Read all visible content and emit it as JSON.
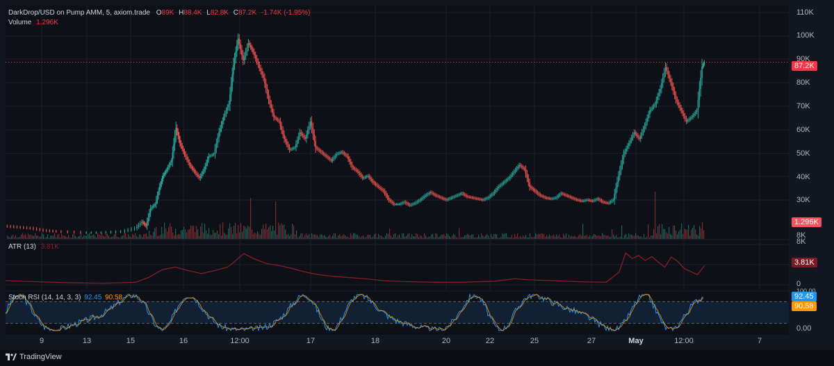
{
  "legend": {
    "title": "DarkDrop/USD on Pump AMM, 5, axiom.trade",
    "o_key": "O",
    "o_val": "89K",
    "h_key": "H",
    "h_val": "88.4K",
    "l_key": "L",
    "l_val": "82.8K",
    "c_key": "C",
    "c_val": "87.2K",
    "change": "-1.74K (-1.95%)",
    "volume_label": "Volume",
    "volume_val": "1.296K"
  },
  "atr_legend": {
    "label": "ATR (13)",
    "value": "3.81K"
  },
  "stoch_legend": {
    "label": "Stoch RSI (14, 14, 3, 3)",
    "k": "92.45",
    "d": "90.58"
  },
  "price_axis": {
    "ticks": [
      "110K",
      "100K",
      "90K",
      "80K",
      "70K",
      "60K",
      "50K",
      "40K",
      "30K",
      "8K"
    ]
  },
  "atr_axis": {
    "ticks": [
      "8K",
      "0"
    ]
  },
  "stoch_axis": {
    "ticks": [
      "100.00",
      "0.00"
    ]
  },
  "badges": {
    "price": "87.2K",
    "volume": "1.296K",
    "atr": "3.81K",
    "k": "92.45",
    "d": "90.58"
  },
  "time_axis": {
    "labels": [
      {
        "text": "9",
        "bold": false
      },
      {
        "text": "13",
        "bold": false
      },
      {
        "text": "15",
        "bold": false
      },
      {
        "text": "16",
        "bold": false
      },
      {
        "text": "12:00",
        "bold": false
      },
      {
        "text": "17",
        "bold": false
      },
      {
        "text": "18",
        "bold": false
      },
      {
        "text": "20",
        "bold": false
      },
      {
        "text": "22",
        "bold": false
      },
      {
        "text": "25",
        "bold": false
      },
      {
        "text": "27",
        "bold": false
      },
      {
        "text": "May",
        "bold": true
      },
      {
        "text": "12:00",
        "bold": false
      },
      {
        "text": "7",
        "bold": false
      }
    ]
  },
  "footer": {
    "brand": "TradingView"
  },
  "colors": {
    "up": "#26a69a",
    "down": "#ef5350",
    "atr": "#8e1e26",
    "stoch_k": "#2196f3",
    "stoch_d": "#ff9800",
    "price_line": "#f23645"
  },
  "chart_data": [
    {
      "type": "line",
      "title": "DarkDrop/USD on Pump AMM, 5, axiom.trade",
      "ylim": [
        8000,
        110000
      ],
      "current_price": 87200,
      "x": [
        "9",
        "13",
        "15",
        "16",
        "12:00",
        "17",
        "18",
        "20",
        "22",
        "25",
        "27",
        "May",
        "12:00",
        "7"
      ],
      "series": [
        {
          "name": "",
          "points": [
            [
              0,
              12000
            ],
            [
              2,
              11500
            ],
            [
              4,
              11000
            ],
            [
              6,
              10000
            ],
            [
              8,
              9500
            ],
            [
              12,
              9000
            ],
            [
              15,
              9000
            ],
            [
              18,
              9500
            ],
            [
              20,
              11000
            ],
            [
              21,
              14000
            ],
            [
              21.6,
              12000
            ],
            [
              22.3,
              20000
            ],
            [
              23,
              22000
            ],
            [
              23.7,
              30000
            ],
            [
              24.2,
              35000
            ],
            [
              24.8,
              38000
            ],
            [
              25.5,
              42000
            ],
            [
              26.2,
              57000
            ],
            [
              26.8,
              50000
            ],
            [
              27.5,
              45000
            ],
            [
              28.3,
              40000
            ],
            [
              29,
              37000
            ],
            [
              29.8,
              34000
            ],
            [
              30.5,
              38000
            ],
            [
              31.2,
              44000
            ],
            [
              32,
              45000
            ],
            [
              32.8,
              55000
            ],
            [
              33.5,
              62000
            ],
            [
              34.3,
              68000
            ],
            [
              35,
              86000
            ],
            [
              35.7,
              98000
            ],
            [
              36.5,
              88000
            ],
            [
              37.3,
              96000
            ],
            [
              38,
              92000
            ],
            [
              38.8,
              86000
            ],
            [
              39.6,
              80000
            ],
            [
              40.4,
              70000
            ],
            [
              41.2,
              62000
            ],
            [
              42,
              60000
            ],
            [
              42.8,
              52000
            ],
            [
              43.6,
              47000
            ],
            [
              44.4,
              48000
            ],
            [
              45.2,
              55000
            ],
            [
              46,
              52000
            ],
            [
              46.8,
              60000
            ],
            [
              47.6,
              48000
            ],
            [
              48.4,
              46000
            ],
            [
              49.2,
              44000
            ],
            [
              50,
              42000
            ],
            [
              50.8,
              45000
            ],
            [
              51.6,
              46000
            ],
            [
              52.4,
              44000
            ],
            [
              53.2,
              39000
            ],
            [
              54,
              37000
            ],
            [
              54.8,
              34000
            ],
            [
              55.6,
              35000
            ],
            [
              56.4,
              32000
            ],
            [
              57.2,
              30000
            ],
            [
              58,
              28000
            ],
            [
              58.8,
              24000
            ],
            [
              59.6,
              22000
            ],
            [
              60.4,
              22000
            ],
            [
              61.2,
              23000
            ],
            [
              62,
              21500
            ],
            [
              62.8,
              22500
            ],
            [
              63.6,
              24000
            ],
            [
              64.4,
              26000
            ],
            [
              65.2,
              27500
            ],
            [
              66,
              26000
            ],
            [
              66.8,
              25000
            ],
            [
              67.6,
              24000
            ],
            [
              68.4,
              25000
            ],
            [
              69.2,
              26000
            ],
            [
              70,
              27000
            ],
            [
              70.8,
              25500
            ],
            [
              71.6,
              25000
            ],
            [
              72.4,
              24500
            ],
            [
              73.2,
              24000
            ],
            [
              74,
              25000
            ],
            [
              74.8,
              27000
            ],
            [
              75.6,
              30000
            ],
            [
              76.4,
              32000
            ],
            [
              77.2,
              34000
            ],
            [
              78,
              37000
            ],
            [
              78.8,
              40000
            ],
            [
              79.6,
              38000
            ],
            [
              80.4,
              30000
            ],
            [
              81.2,
              28000
            ],
            [
              82,
              26000
            ],
            [
              82.8,
              25000
            ],
            [
              83.6,
              24500
            ],
            [
              84.4,
              25000
            ],
            [
              85.2,
              27000
            ],
            [
              86,
              26000
            ],
            [
              86.8,
              25000
            ],
            [
              87.6,
              24000
            ],
            [
              88.4,
              23500
            ],
            [
              89.2,
              24000
            ],
            [
              90,
              23500
            ],
            [
              90.8,
              24500
            ],
            [
              91.6,
              23000
            ],
            [
              92.4,
              22500
            ],
            [
              93.2,
              24000
            ],
            [
              94,
              35000
            ],
            [
              94.8,
              45000
            ],
            [
              95.6,
              50000
            ],
            [
              96.4,
              55000
            ],
            [
              97.2,
              52000
            ],
            [
              98,
              58000
            ],
            [
              98.8,
              65000
            ],
            [
              99.6,
              68000
            ],
            [
              100.4,
              75000
            ],
            [
              101.2,
              85000
            ],
            [
              102,
              78000
            ],
            [
              102.8,
              70000
            ],
            [
              103.6,
              65000
            ],
            [
              104.4,
              60000
            ],
            [
              105.2,
              62000
            ],
            [
              106,
              65000
            ],
            [
              106.8,
              85000
            ],
            [
              107.1,
              87200
            ]
          ]
        },
        {
          "name": "Volume",
          "values_note": ""
        }
      ]
    },
    {
      "type": "line",
      "title": "ATR (13)",
      "ylim": [
        0,
        8000
      ],
      "series": [
        {
          "name": "ATR (13)",
          "points": [
            [
              0,
              800
            ],
            [
              5,
              600
            ],
            [
              10,
              400
            ],
            [
              15,
              300
            ],
            [
              20,
              500
            ],
            [
              22,
              1500
            ],
            [
              24,
              3000
            ],
            [
              26,
              3500
            ],
            [
              28,
              2800
            ],
            [
              30,
              2200
            ],
            [
              32,
              2800
            ],
            [
              34,
              3500
            ],
            [
              35,
              4500
            ],
            [
              36.5,
              6200
            ],
            [
              38,
              5200
            ],
            [
              40,
              4200
            ],
            [
              42,
              3800
            ],
            [
              44,
              3200
            ],
            [
              46,
              2500
            ],
            [
              48,
              2000
            ],
            [
              50,
              1700
            ],
            [
              52,
              1500
            ],
            [
              55,
              1200
            ],
            [
              58,
              800
            ],
            [
              62,
              600
            ],
            [
              66,
              500
            ],
            [
              70,
              500
            ],
            [
              75,
              700
            ],
            [
              78,
              1200
            ],
            [
              80,
              1000
            ],
            [
              84,
              800
            ],
            [
              88,
              600
            ],
            [
              92,
              500
            ],
            [
              94,
              2500
            ],
            [
              95,
              6300
            ],
            [
              96,
              5200
            ],
            [
              97,
              5800
            ],
            [
              98,
              4800
            ],
            [
              99,
              5600
            ],
            [
              100,
              4500
            ],
            [
              101,
              3500
            ],
            [
              102,
              5500
            ],
            [
              103,
              4600
            ],
            [
              104,
              3200
            ],
            [
              105,
              2600
            ],
            [
              106,
              2000
            ],
            [
              107.1,
              3810
            ]
          ]
        }
      ]
    },
    {
      "type": "line",
      "title": "Stoch RSI (14, 14, 3, 3)",
      "ylim": [
        0,
        100
      ],
      "series": [
        {
          "name": "K",
          "last": 92.45
        },
        {
          "name": "D",
          "last": 90.58
        }
      ]
    }
  ]
}
